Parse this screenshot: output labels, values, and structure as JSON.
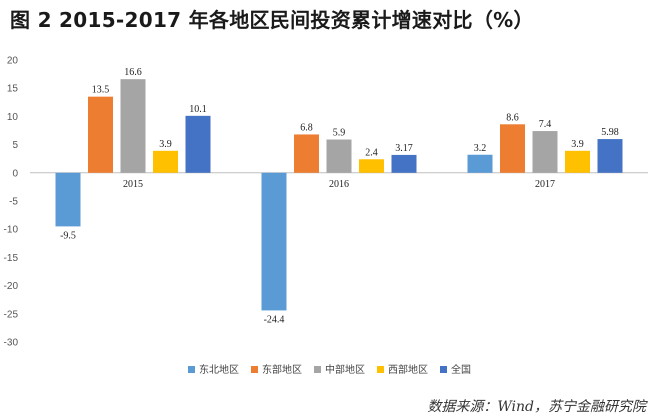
{
  "chart_data": {
    "type": "bar",
    "title": "图 2  2015-2017 年各地区民间投资累计增速对比（%）",
    "categories": [
      "2015",
      "2016",
      "2017"
    ],
    "series": [
      {
        "name": "东北地区",
        "color": "#5b9bd5",
        "values": [
          -9.5,
          -24.4,
          3.2
        ],
        "labels": [
          "-9.5",
          "-24.4",
          "3.2"
        ]
      },
      {
        "name": "东部地区",
        "color": "#ed7d31",
        "values": [
          13.5,
          6.8,
          8.6
        ],
        "labels": [
          "13.5",
          "6.8",
          "8.6"
        ]
      },
      {
        "name": "中部地区",
        "color": "#a5a5a5",
        "values": [
          16.6,
          5.9,
          7.4
        ],
        "labels": [
          "16.6",
          "5.9",
          "7.4"
        ]
      },
      {
        "name": "西部地区",
        "color": "#ffc000",
        "values": [
          3.9,
          2.4,
          3.9
        ],
        "labels": [
          "3.9",
          "2.4",
          "3.9"
        ]
      },
      {
        "name": "全国",
        "color": "#4472c4",
        "values": [
          10.1,
          3.17,
          5.98
        ],
        "labels": [
          "10.1",
          "3.17",
          "5.98"
        ]
      }
    ],
    "ylim": [
      -30,
      20
    ],
    "yticks": [
      "20",
      "15",
      "10",
      "5",
      "0",
      "-5",
      "-10",
      "-15",
      "-20",
      "-25",
      "-30"
    ],
    "grid": false,
    "legend_position": "bottom"
  },
  "source": "数据来源：Wind，苏宁金融研究院"
}
